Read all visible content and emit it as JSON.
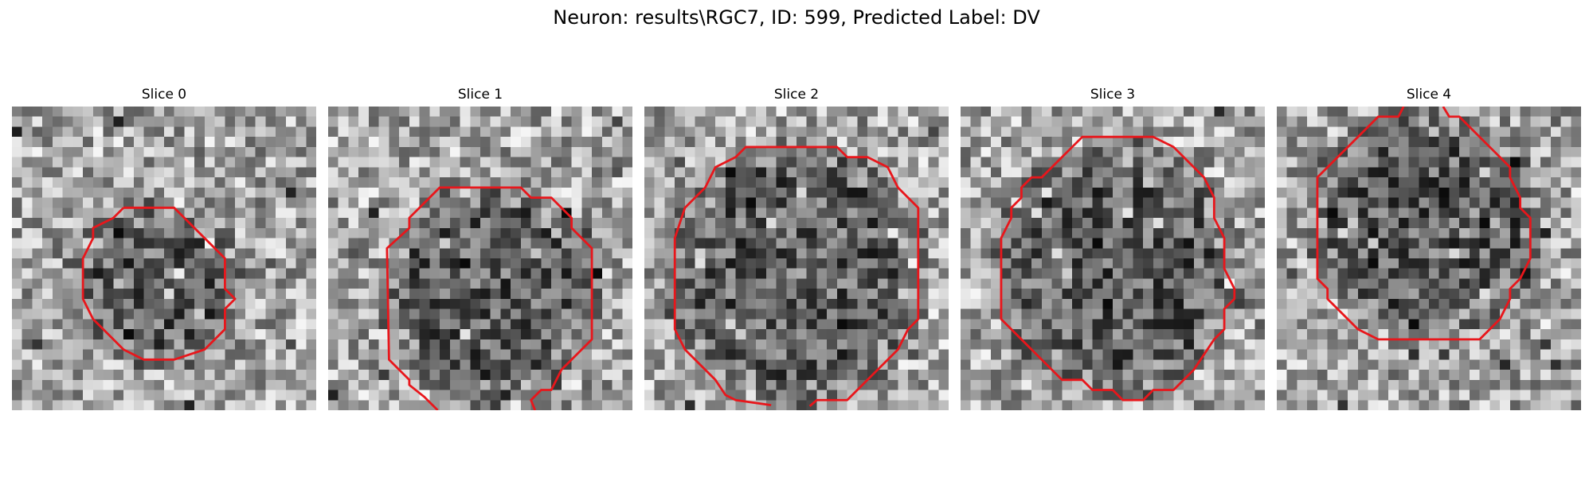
{
  "figure": {
    "title": "Neuron: results\\RGC7, ID: 599, Predicted Label: DV"
  },
  "panels": [
    {
      "title": "Slice 0",
      "seed": 11,
      "outline_color": "#e8161b"
    },
    {
      "title": "Slice 1",
      "seed": 23,
      "outline_color": "#e8161b"
    },
    {
      "title": "Slice 2",
      "seed": 37,
      "outline_color": "#e8161b"
    },
    {
      "title": "Slice 3",
      "seed": 41,
      "outline_color": "#e8161b"
    },
    {
      "title": "Slice 4",
      "seed": 59,
      "outline_color": "#e8161b"
    }
  ],
  "colormap": "gray"
}
